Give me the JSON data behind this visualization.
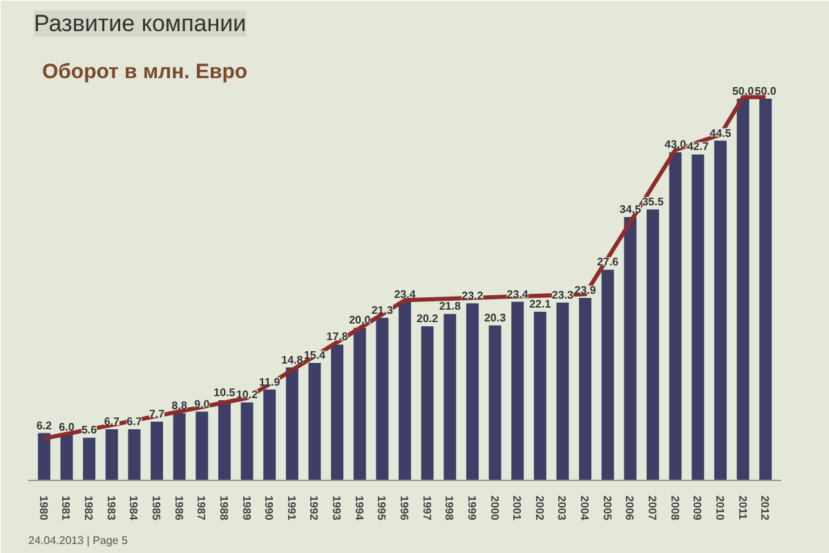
{
  "chart_data": {
    "type": "bar",
    "title": "Развитие компании",
    "subtitle": "Оборот в млн. Евро",
    "x": [
      1980,
      1981,
      1982,
      1983,
      1984,
      1985,
      1986,
      1987,
      1988,
      1989,
      1990,
      1991,
      1992,
      1993,
      1994,
      1995,
      1996,
      1997,
      1998,
      1999,
      2000,
      2001,
      2002,
      2003,
      2004,
      2005,
      2006,
      2007,
      2008,
      2009,
      2010,
      2011,
      2012
    ],
    "xlim": [
      1979.3,
      2012.7
    ],
    "xticks": [
      1980,
      1981,
      1982,
      1983,
      1984,
      1985,
      1986,
      1987,
      1988,
      1989,
      1990,
      1991,
      1992,
      1993,
      1994,
      1995,
      1996,
      1997,
      1998,
      1999,
      2000,
      2001,
      2002,
      2003,
      2004,
      2005,
      2006,
      2007,
      2008,
      2009,
      2010,
      2011,
      2012
    ],
    "series": [
      {
        "color": "#3d3f66",
        "values": [
          6.2,
          6.0,
          5.6,
          6.7,
          6.7,
          7.7,
          8.8,
          9.0,
          10.5,
          10.2,
          11.9,
          14.8,
          15.4,
          17.8,
          20.0,
          21.3,
          23.4,
          20.2,
          21.8,
          23.2,
          20.3,
          23.4,
          22.1,
          23.3,
          23.9,
          27.6,
          34.5,
          35.5,
          43.0,
          42.7,
          44.5,
          50.0,
          50.0
        ],
        "value_labels": [
          "6.2",
          "6.0",
          "5.6",
          "6.7",
          "6.7",
          "7.7",
          "8.8",
          "9.0",
          "10.5",
          "10.2",
          "11.9",
          "14.8",
          "15.4",
          "17.8",
          "20.0",
          "21.3",
          "23.4",
          "20.2",
          "21.8",
          "23.2",
          "20.3",
          "23.4",
          "22.1",
          "23.3",
          "23.9",
          "27.6",
          "34.5",
          "35.5",
          "43.0",
          "42.7",
          "44.5",
          "50.0",
          "50.0"
        ]
      },
      {
        "type": "line",
        "color": "#8e2b2b",
        "x": [
          1980,
          1989,
          1996,
          2004,
          2008,
          2010,
          2011,
          2012
        ],
        "values": [
          5.5,
          10.8,
          23.6,
          24.4,
          43.3,
          45.3,
          50.2,
          50.2
        ]
      }
    ],
    "tick_labels": "x",
    "annotations": [
      "24.04.2013 | Page 5"
    ]
  }
}
